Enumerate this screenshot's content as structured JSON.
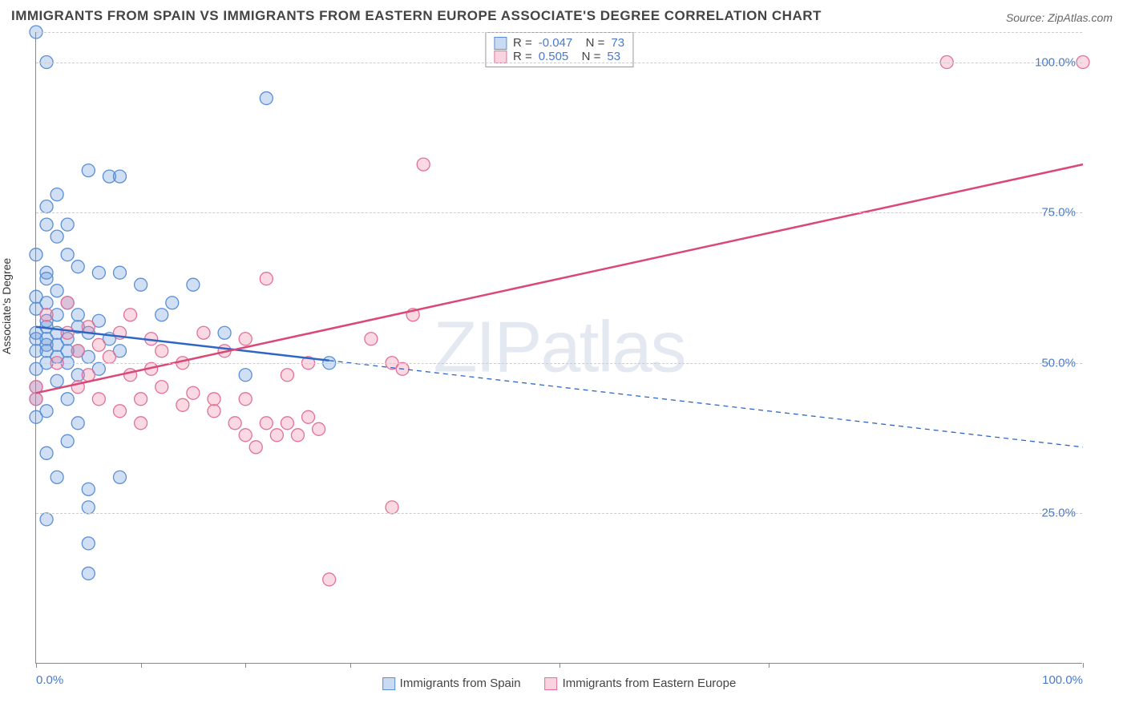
{
  "title": "IMMIGRANTS FROM SPAIN VS IMMIGRANTS FROM EASTERN EUROPE ASSOCIATE'S DEGREE CORRELATION CHART",
  "source": "Source: ZipAtlas.com",
  "ylabel": "Associate's Degree",
  "watermark": "ZIPatlas",
  "chart": {
    "type": "scatter",
    "xlim": [
      0,
      100
    ],
    "ylim": [
      0,
      105
    ],
    "yticks": [
      25,
      50,
      75,
      100
    ],
    "ytick_labels": [
      "25.0%",
      "50.0%",
      "75.0%",
      "100.0%"
    ],
    "xticks_minor": [
      0,
      10,
      20,
      30,
      50,
      70,
      100
    ],
    "xtick_labels": {
      "0": "0.0%",
      "100": "100.0%"
    },
    "background_color": "#ffffff",
    "grid_color": "#cccccc",
    "series": [
      {
        "name": "Immigrants from Spain",
        "color_fill": "rgba(100,150,220,0.30)",
        "color_stroke": "#5a8fd6",
        "line_color": "#2e66c4",
        "R": "-0.047",
        "N": "73",
        "trend": {
          "x1": 0,
          "y1": 56,
          "x2": 100,
          "y2": 36,
          "solid_until": 28
        },
        "points": [
          [
            1,
            100
          ],
          [
            0,
            105
          ],
          [
            22,
            94
          ],
          [
            5,
            82
          ],
          [
            7,
            81
          ],
          [
            8,
            81
          ],
          [
            2,
            78
          ],
          [
            1,
            76
          ],
          [
            1,
            73
          ],
          [
            3,
            73
          ],
          [
            2,
            71
          ],
          [
            0,
            68
          ],
          [
            3,
            68
          ],
          [
            1,
            65
          ],
          [
            4,
            66
          ],
          [
            1,
            64
          ],
          [
            6,
            65
          ],
          [
            8,
            65
          ],
          [
            10,
            63
          ],
          [
            15,
            63
          ],
          [
            13,
            60
          ],
          [
            0,
            61
          ],
          [
            1,
            60
          ],
          [
            3,
            60
          ],
          [
            2,
            58
          ],
          [
            1,
            57
          ],
          [
            4,
            58
          ],
          [
            6,
            57
          ],
          [
            4,
            56
          ],
          [
            0,
            55
          ],
          [
            2,
            55
          ],
          [
            1,
            54
          ],
          [
            3,
            54
          ],
          [
            5,
            55
          ],
          [
            7,
            54
          ],
          [
            1,
            53
          ],
          [
            0,
            52
          ],
          [
            3,
            52
          ],
          [
            4,
            52
          ],
          [
            2,
            51
          ],
          [
            1,
            50
          ],
          [
            0,
            49
          ],
          [
            3,
            50
          ],
          [
            5,
            51
          ],
          [
            8,
            52
          ],
          [
            0,
            46
          ],
          [
            2,
            47
          ],
          [
            4,
            48
          ],
          [
            6,
            49
          ],
          [
            1,
            42
          ],
          [
            3,
            44
          ],
          [
            0,
            41
          ],
          [
            3,
            37
          ],
          [
            1,
            35
          ],
          [
            2,
            31
          ],
          [
            8,
            31
          ],
          [
            5,
            29
          ],
          [
            5,
            26
          ],
          [
            1,
            24
          ],
          [
            5,
            20
          ],
          [
            5,
            15
          ],
          [
            28,
            50
          ],
          [
            18,
            55
          ],
          [
            12,
            58
          ],
          [
            20,
            48
          ],
          [
            2,
            62
          ],
          [
            0,
            59
          ],
          [
            1,
            56
          ],
          [
            0,
            54
          ],
          [
            1,
            52
          ],
          [
            2,
            53
          ],
          [
            0,
            44
          ],
          [
            4,
            40
          ]
        ]
      },
      {
        "name": "Immigrants from Eastern Europe",
        "color_fill": "rgba(240,130,160,0.30)",
        "color_stroke": "#e27099",
        "line_color": "#d94876",
        "R": "0.505",
        "N": "53",
        "trend": {
          "x1": 0,
          "y1": 45,
          "x2": 100,
          "y2": 83,
          "solid_until": 100
        },
        "points": [
          [
            87,
            100
          ],
          [
            100,
            100
          ],
          [
            37,
            83
          ],
          [
            22,
            64
          ],
          [
            36,
            58
          ],
          [
            32,
            54
          ],
          [
            34,
            50
          ],
          [
            35,
            49
          ],
          [
            26,
            50
          ],
          [
            24,
            48
          ],
          [
            20,
            54
          ],
          [
            18,
            52
          ],
          [
            16,
            55
          ],
          [
            14,
            50
          ],
          [
            12,
            52
          ],
          [
            11,
            54
          ],
          [
            9,
            58
          ],
          [
            8,
            55
          ],
          [
            6,
            53
          ],
          [
            5,
            56
          ],
          [
            4,
            52
          ],
          [
            3,
            55
          ],
          [
            7,
            51
          ],
          [
            2,
            50
          ],
          [
            0,
            46
          ],
          [
            0,
            44
          ],
          [
            12,
            46
          ],
          [
            15,
            45
          ],
          [
            10,
            44
          ],
          [
            17,
            44
          ],
          [
            20,
            44
          ],
          [
            14,
            43
          ],
          [
            17,
            42
          ],
          [
            19,
            40
          ],
          [
            22,
            40
          ],
          [
            24,
            40
          ],
          [
            26,
            41
          ],
          [
            20,
            38
          ],
          [
            23,
            38
          ],
          [
            25,
            38
          ],
          [
            27,
            39
          ],
          [
            21,
            36
          ],
          [
            8,
            42
          ],
          [
            6,
            44
          ],
          [
            4,
            46
          ],
          [
            10,
            40
          ],
          [
            34,
            26
          ],
          [
            28,
            14
          ],
          [
            1,
            58
          ],
          [
            3,
            60
          ],
          [
            5,
            48
          ],
          [
            9,
            48
          ],
          [
            11,
            49
          ]
        ]
      }
    ]
  },
  "bottom_legend": [
    "Immigrants from Spain",
    "Immigrants from Eastern Europe"
  ]
}
